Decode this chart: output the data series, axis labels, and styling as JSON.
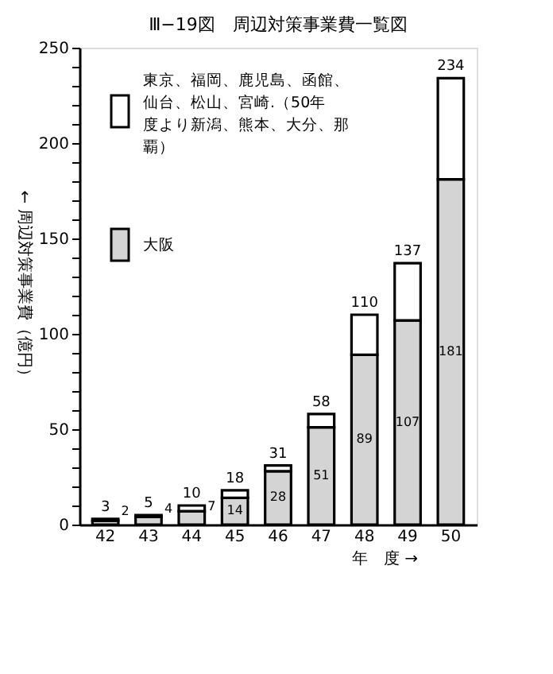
{
  "chart_data": {
    "type": "bar",
    "stacked": true,
    "title": "Ⅲ−19図　周辺対策事業費一覧図",
    "xlabel": "年　度 →",
    "ylabel": "← 周辺対策事業費（億円）",
    "categories": [
      "42",
      "43",
      "44",
      "45",
      "46",
      "47",
      "48",
      "49",
      "50"
    ],
    "series": [
      {
        "name": "大阪",
        "color": "#d4d4d4",
        "values": [
          2,
          4,
          7,
          14,
          28,
          51,
          89,
          107,
          181
        ],
        "value_labels": [
          "2",
          "4",
          "7",
          "14",
          "28",
          "51",
          "89",
          "107",
          "181"
        ]
      },
      {
        "name": "東京、福岡、鹿児島、函館、仙台、松山、宮崎.（50年度より新潟、熊本、大分、那覇）",
        "color": "#ffffff",
        "values": [
          1,
          1,
          3,
          4,
          3,
          7,
          21,
          30,
          53
        ]
      }
    ],
    "totals": [
      "3",
      "5",
      "10",
      "18",
      "31",
      "58",
      "110",
      "137",
      "234"
    ],
    "ylim": [
      0,
      250
    ],
    "yticks": [
      0,
      {
        "value": 10,
        "label": null
      },
      {
        "value": 20,
        "label": null
      },
      {
        "value": 30,
        "label": null
      },
      {
        "value": 40,
        "label": null
      },
      50,
      {
        "value": 60,
        "label": null
      },
      {
        "value": 70,
        "label": null
      },
      {
        "value": 80,
        "label": null
      },
      {
        "value": 90,
        "label": null
      },
      100,
      {
        "value": 110,
        "label": null
      },
      {
        "value": 120,
        "label": null
      },
      {
        "value": 130,
        "label": null
      },
      {
        "value": 140,
        "label": null
      },
      150,
      {
        "value": 160,
        "label": null
      },
      {
        "value": 170,
        "label": null
      },
      {
        "value": 180,
        "label": null
      },
      {
        "value": 190,
        "label": null
      },
      200,
      {
        "value": 210,
        "label": null
      },
      {
        "value": 220,
        "label": null
      },
      {
        "value": 230,
        "label": null
      },
      {
        "value": 240,
        "label": null
      },
      250
    ],
    "grid": false,
    "legend": "top left"
  }
}
